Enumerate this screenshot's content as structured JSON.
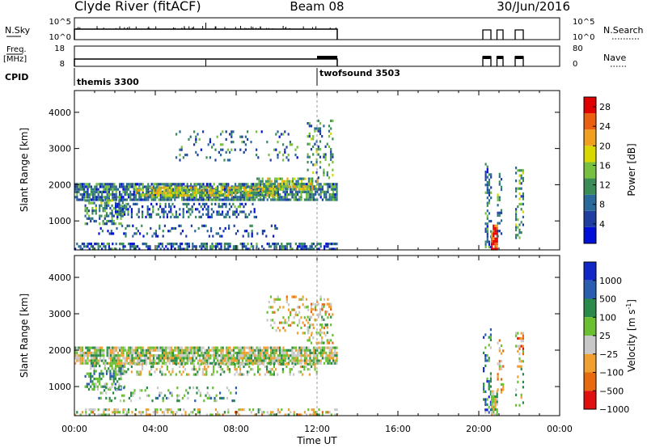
{
  "header": {
    "station": "Clyde River (fitACF)",
    "beam": "Beam 08",
    "date": "30/Jun/2016"
  },
  "info_panels": {
    "nsky_label": "N.Sky",
    "nsky_ticks": [
      "10^5",
      "10^0"
    ],
    "nsearch_label": "N.Search",
    "nsearch_ticks": [
      "10^5",
      "10^0"
    ],
    "freq_label": "Freq.",
    "freq_unit": "[MHz]",
    "freq_ticks": [
      "18",
      "8"
    ],
    "nave_label": "Nave",
    "nave_ticks": [
      "80",
      "0"
    ],
    "cpid_label": "CPID",
    "cpid_modes": [
      {
        "name": "themis 3300",
        "start_hour": 0
      },
      {
        "name": "twofsound 3503",
        "start_hour": 12
      }
    ]
  },
  "x_axis": {
    "label": "Time UT",
    "ticks": [
      "00:00",
      "04:00",
      "08:00",
      "12:00",
      "16:00",
      "20:00",
      "00:00"
    ]
  },
  "chart_data": [
    {
      "type": "heatmap",
      "name": "power",
      "xlim_hours": [
        0,
        24
      ],
      "ylabel": "Slant Range [km]",
      "ylim": [
        200,
        4600
      ],
      "y_ticks": [
        1000,
        2000,
        3000,
        4000
      ],
      "colorbar": {
        "label": "Power [dB]",
        "ticks": [
          "4",
          "8",
          "12",
          "16",
          "20",
          "24",
          "28"
        ],
        "range": [
          0,
          30
        ],
        "colors": [
          "#0010d8",
          "#1e3fa0",
          "#2a6a9a",
          "#3a8d56",
          "#78c040",
          "#d8d800",
          "#f0a020",
          "#e86010",
          "#e00000"
        ]
      },
      "scatter_regions": [
        {
          "t0": 0,
          "t1": 13,
          "r0": 200,
          "r1": 400,
          "level": 0.25,
          "density": 0.55
        },
        {
          "t0": 0,
          "t1": 13,
          "r0": 1600,
          "r1": 2050,
          "level": 0.3,
          "density": 0.8
        },
        {
          "t0": 3,
          "t1": 10,
          "r0": 1700,
          "r1": 1950,
          "level": 0.55,
          "density": 0.7
        },
        {
          "t0": 9,
          "t1": 12,
          "r0": 1900,
          "r1": 2200,
          "level": 0.5,
          "density": 0.65
        },
        {
          "t0": 0.5,
          "t1": 2.5,
          "r0": 900,
          "r1": 1600,
          "level": 0.35,
          "density": 0.45
        },
        {
          "t0": 2,
          "t1": 9,
          "r0": 1100,
          "r1": 1500,
          "level": 0.25,
          "density": 0.35
        },
        {
          "t0": 1,
          "t1": 10,
          "r0": 600,
          "r1": 900,
          "level": 0.2,
          "density": 0.15
        },
        {
          "t0": 5,
          "t1": 11,
          "r0": 2700,
          "r1": 3500,
          "level": 0.3,
          "density": 0.12
        },
        {
          "t0": 11.5,
          "t1": 12.8,
          "r0": 2200,
          "r1": 3800,
          "level": 0.35,
          "density": 0.25
        },
        {
          "t0": 20.3,
          "t1": 20.6,
          "r0": 300,
          "r1": 2600,
          "level": 0.3,
          "density": 0.35
        },
        {
          "t0": 20.6,
          "t1": 20.9,
          "r0": 200,
          "r1": 900,
          "level": 0.95,
          "density": 0.9
        },
        {
          "t0": 20.9,
          "t1": 21.1,
          "r0": 600,
          "r1": 2400,
          "level": 0.35,
          "density": 0.3
        },
        {
          "t0": 21.8,
          "t1": 22.2,
          "r0": 500,
          "r1": 2500,
          "level": 0.4,
          "density": 0.4
        }
      ]
    },
    {
      "type": "heatmap",
      "name": "velocity",
      "xlim_hours": [
        0,
        24
      ],
      "ylabel": "Slant Range [km]",
      "ylim": [
        200,
        4600
      ],
      "y_ticks": [
        1000,
        2000,
        3000,
        4000
      ],
      "colorbar": {
        "label": "Velocity [m s",
        "label_sup": "-1",
        "label_end": "]",
        "ticks": [
          "1000",
          "500",
          "100",
          "25",
          "−25",
          "−100",
          "−500",
          "−1000"
        ],
        "colors": [
          "#1028c8",
          "#2a5fb0",
          "#2a8a4a",
          "#6ac030",
          "#c8c8c8",
          "#f0a030",
          "#e86a10",
          "#e01010"
        ]
      },
      "scatter_regions": [
        {
          "t0": 0,
          "t1": 13,
          "r0": 200,
          "r1": 400,
          "level": 0.55,
          "density": 0.4
        },
        {
          "t0": 0,
          "t1": 13,
          "r0": 1650,
          "r1": 2100,
          "level": 0.5,
          "density": 0.85
        },
        {
          "t0": 2,
          "t1": 12,
          "r0": 1300,
          "r1": 1650,
          "level": 0.5,
          "density": 0.35
        },
        {
          "t0": 0.5,
          "t1": 2.5,
          "r0": 900,
          "r1": 1600,
          "level": 0.38,
          "density": 0.5
        },
        {
          "t0": 1,
          "t1": 8,
          "r0": 600,
          "r1": 1000,
          "level": 0.4,
          "density": 0.2
        },
        {
          "t0": 9.5,
          "t1": 12.5,
          "r0": 2500,
          "r1": 3500,
          "level": 0.6,
          "density": 0.2
        },
        {
          "t0": 11.5,
          "t1": 12.8,
          "r0": 2200,
          "r1": 3300,
          "level": 0.55,
          "density": 0.3
        },
        {
          "t0": 20.2,
          "t1": 20.6,
          "r0": 300,
          "r1": 2600,
          "level": 0.3,
          "density": 0.35
        },
        {
          "t0": 20.6,
          "t1": 20.9,
          "r0": 200,
          "r1": 900,
          "level": 0.5,
          "density": 0.9
        },
        {
          "t0": 20.9,
          "t1": 21.2,
          "r0": 800,
          "r1": 2300,
          "level": 0.6,
          "density": 0.3
        },
        {
          "t0": 21.8,
          "t1": 22.2,
          "r0": 1900,
          "r1": 2500,
          "level": 0.7,
          "density": 0.55
        },
        {
          "t0": 21.8,
          "t1": 22.2,
          "r0": 500,
          "r1": 1800,
          "level": 0.5,
          "density": 0.3
        }
      ]
    }
  ]
}
